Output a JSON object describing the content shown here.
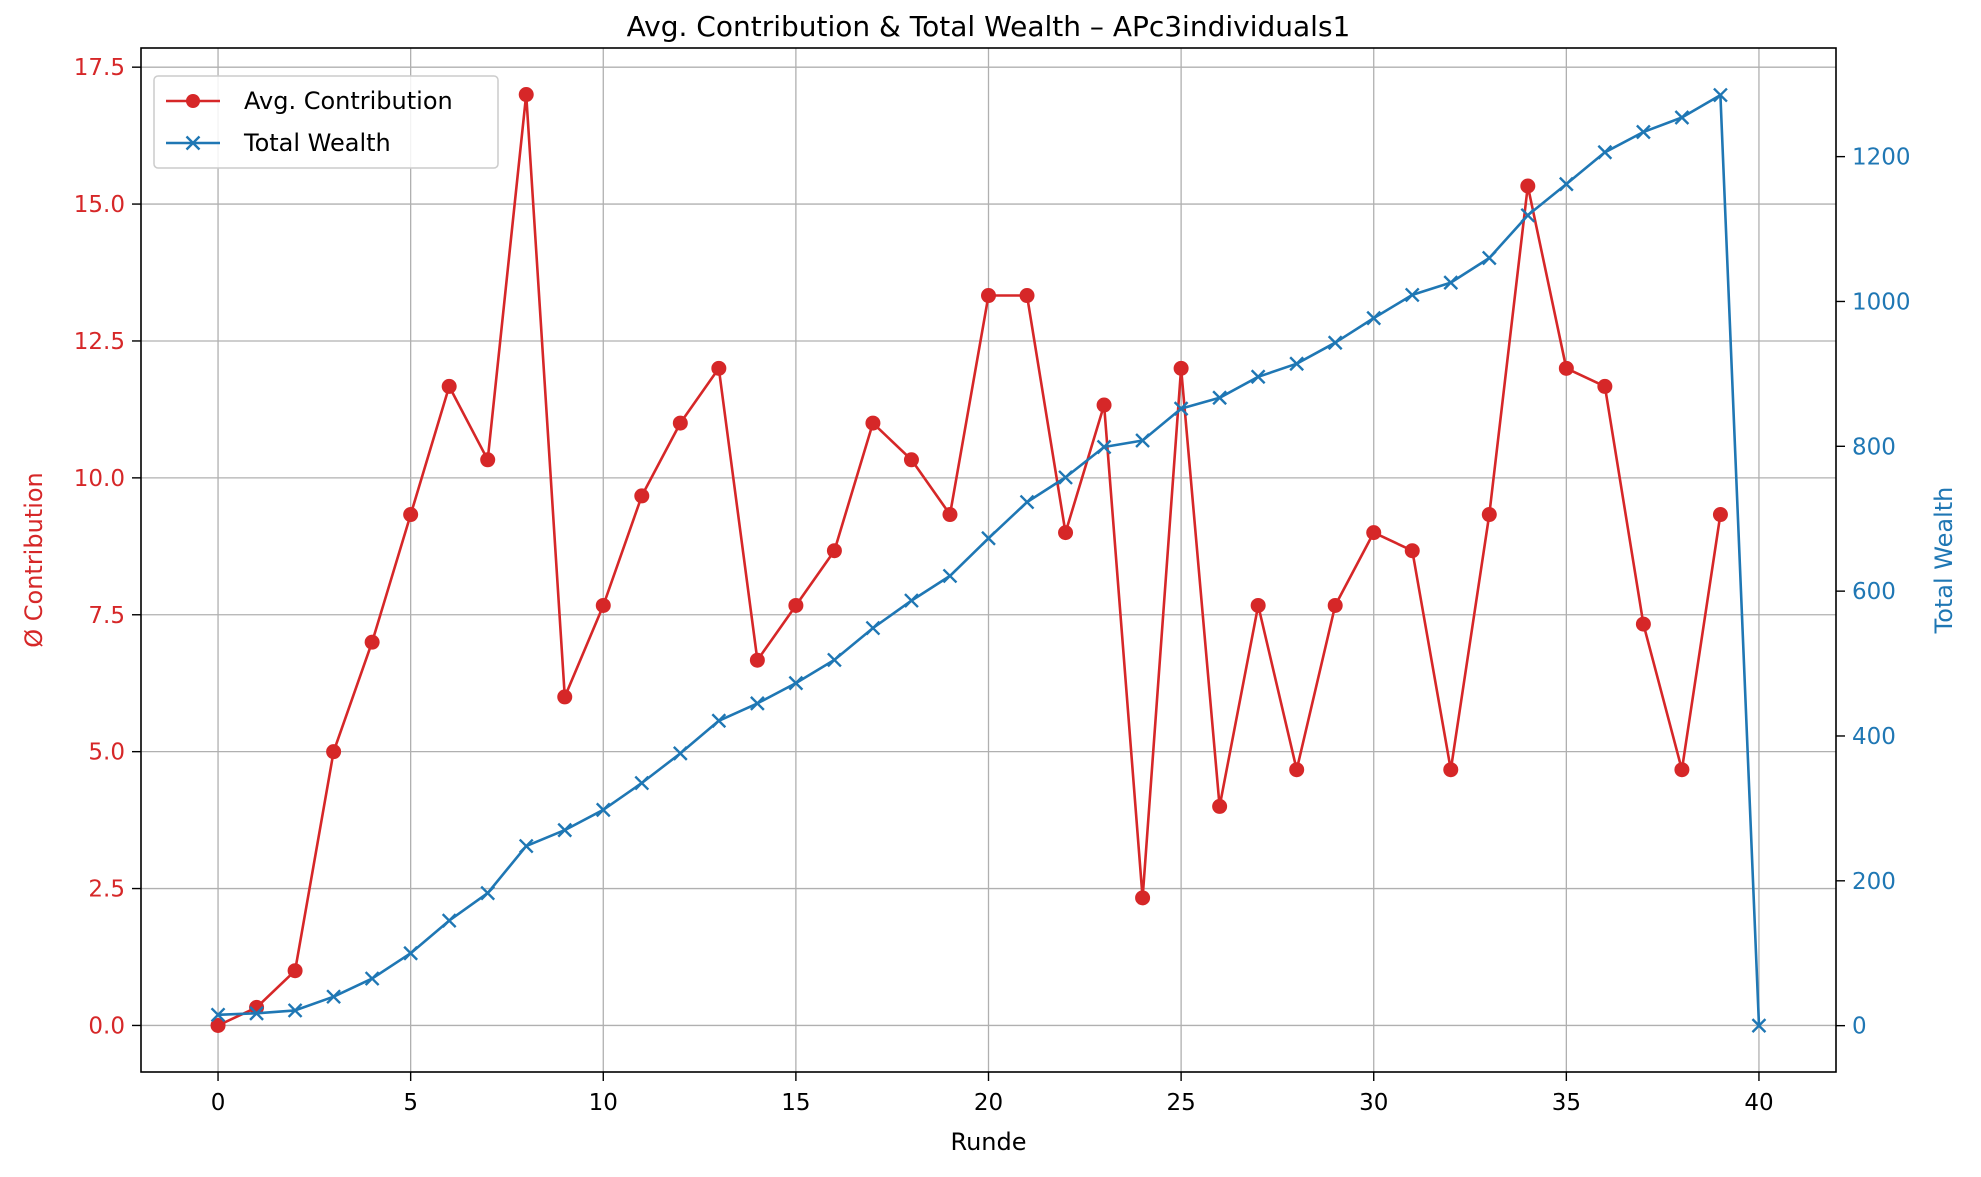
{
  "chart_data": {
    "type": "line",
    "title": "Avg. Contribution & Total Wealth – APc3individuals1",
    "xlabel": "Runde",
    "ylabel_left": "Ø Contribution",
    "ylabel_right": "Total Wealth",
    "xlim": [
      -2,
      42
    ],
    "ylim_left": [
      -0.85,
      17.85
    ],
    "ylim_right": [
      -64,
      1350
    ],
    "xticks": [
      0,
      5,
      10,
      15,
      20,
      25,
      30,
      35,
      40
    ],
    "yticks_left": [
      "0.0",
      "2.5",
      "5.0",
      "7.5",
      "10.0",
      "12.5",
      "15.0",
      "17.5"
    ],
    "yticks_right": [
      "0",
      "200",
      "400",
      "600",
      "800",
      "1000",
      "1200"
    ],
    "grid": true,
    "legend_position": "top-left",
    "series": [
      {
        "name": "Avg. Contribution",
        "axis": "left",
        "color": "#d62728",
        "marker": "circle",
        "x": [
          0,
          1,
          2,
          3,
          4,
          5,
          6,
          7,
          8,
          9,
          10,
          11,
          12,
          13,
          14,
          15,
          16,
          17,
          18,
          19,
          20,
          21,
          22,
          23,
          24,
          25,
          26,
          27,
          28,
          29,
          30,
          31,
          32,
          33,
          34,
          35,
          36,
          37,
          38,
          39
        ],
        "values": [
          0,
          0.33,
          1.0,
          5.0,
          7.0,
          9.33,
          11.67,
          10.33,
          17.0,
          6.0,
          7.67,
          9.67,
          11.0,
          12.0,
          6.67,
          7.67,
          8.67,
          11.0,
          10.33,
          9.33,
          13.33,
          13.33,
          9.0,
          11.33,
          2.33,
          12.0,
          4.0,
          7.67,
          4.67,
          7.67,
          9.0,
          8.67,
          4.67,
          9.33,
          15.33,
          12.0,
          11.67,
          7.33,
          4.67,
          9.33
        ]
      },
      {
        "name": "Total Wealth",
        "axis": "right",
        "color": "#1f77b4",
        "marker": "x",
        "x": [
          0,
          1,
          2,
          3,
          4,
          5,
          6,
          7,
          8,
          9,
          10,
          11,
          12,
          13,
          14,
          15,
          16,
          17,
          18,
          19,
          20,
          21,
          22,
          23,
          24,
          25,
          26,
          27,
          28,
          29,
          30,
          31,
          32,
          33,
          34,
          35,
          36,
          37,
          38,
          39,
          40
        ],
        "values": [
          15,
          17,
          21,
          40,
          65,
          100,
          145,
          183,
          248,
          270,
          298,
          335,
          376,
          421,
          445,
          473,
          505,
          549,
          587,
          621,
          673,
          723,
          757,
          799,
          808,
          852,
          867,
          896,
          914,
          943,
          977,
          1009,
          1026,
          1060,
          1119,
          1162,
          1206,
          1234,
          1254,
          1285,
          0
        ]
      }
    ]
  }
}
